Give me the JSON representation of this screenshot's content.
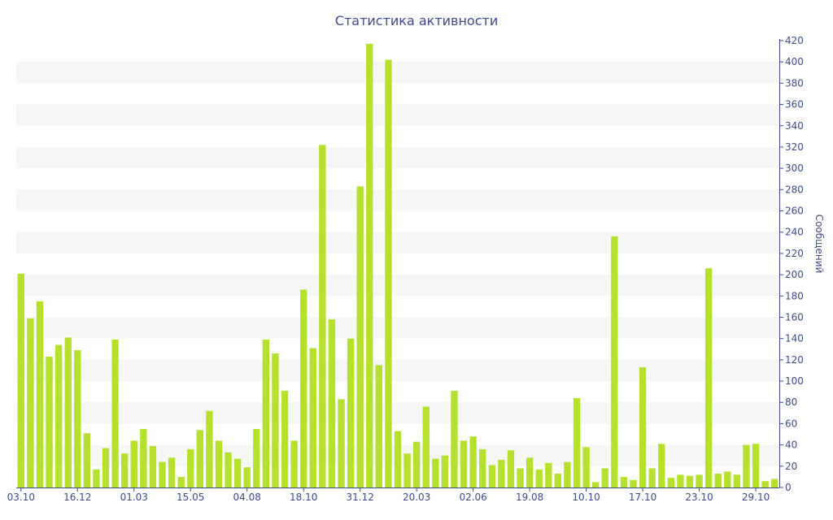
{
  "chart_data": {
    "type": "bar",
    "title": "Статистика активности",
    "ylabel": "Сообщений",
    "xlabel": "",
    "ylim": [
      0,
      420
    ],
    "y_ticks": [
      0,
      20,
      40,
      60,
      80,
      100,
      120,
      140,
      160,
      180,
      200,
      220,
      240,
      260,
      280,
      300,
      320,
      340,
      360,
      380,
      400,
      420
    ],
    "y_axis_position": "right",
    "bar_color": "#b5e02c",
    "band_color": "#f6f6f6",
    "text_color": "#3e4a8c",
    "grid": "alternating horizontal bands",
    "x_tick_labels": [
      {
        "index": 0,
        "label": "03.10"
      },
      {
        "index": 6,
        "label": "16.12"
      },
      {
        "index": 12,
        "label": "01.03"
      },
      {
        "index": 18,
        "label": "15.05"
      },
      {
        "index": 24,
        "label": "04.08"
      },
      {
        "index": 30,
        "label": "18.10"
      },
      {
        "index": 36,
        "label": "31.12"
      },
      {
        "index": 42,
        "label": "20.03"
      },
      {
        "index": 48,
        "label": "02.06"
      },
      {
        "index": 54,
        "label": "19.08"
      },
      {
        "index": 60,
        "label": "10.10"
      },
      {
        "index": 66,
        "label": "17.10"
      },
      {
        "index": 72,
        "label": "23.10"
      },
      {
        "index": 78,
        "label": "29.10"
      }
    ],
    "values": [
      201,
      159,
      175,
      123,
      134,
      141,
      129,
      51,
      17,
      37,
      139,
      32,
      44,
      55,
      39,
      24,
      28,
      10,
      36,
      54,
      72,
      44,
      33,
      27,
      19,
      55,
      139,
      126,
      91,
      44,
      186,
      131,
      322,
      158,
      83,
      140,
      283,
      417,
      115,
      402,
      53,
      32,
      43,
      76,
      27,
      30,
      91,
      44,
      48,
      36,
      21,
      26,
      35,
      18,
      28,
      17,
      23,
      13,
      24,
      84,
      38,
      5,
      18,
      236,
      10,
      7,
      113,
      18,
      41,
      9,
      12,
      11,
      12,
      206,
      13,
      15,
      12,
      40,
      41,
      6,
      8
    ]
  }
}
